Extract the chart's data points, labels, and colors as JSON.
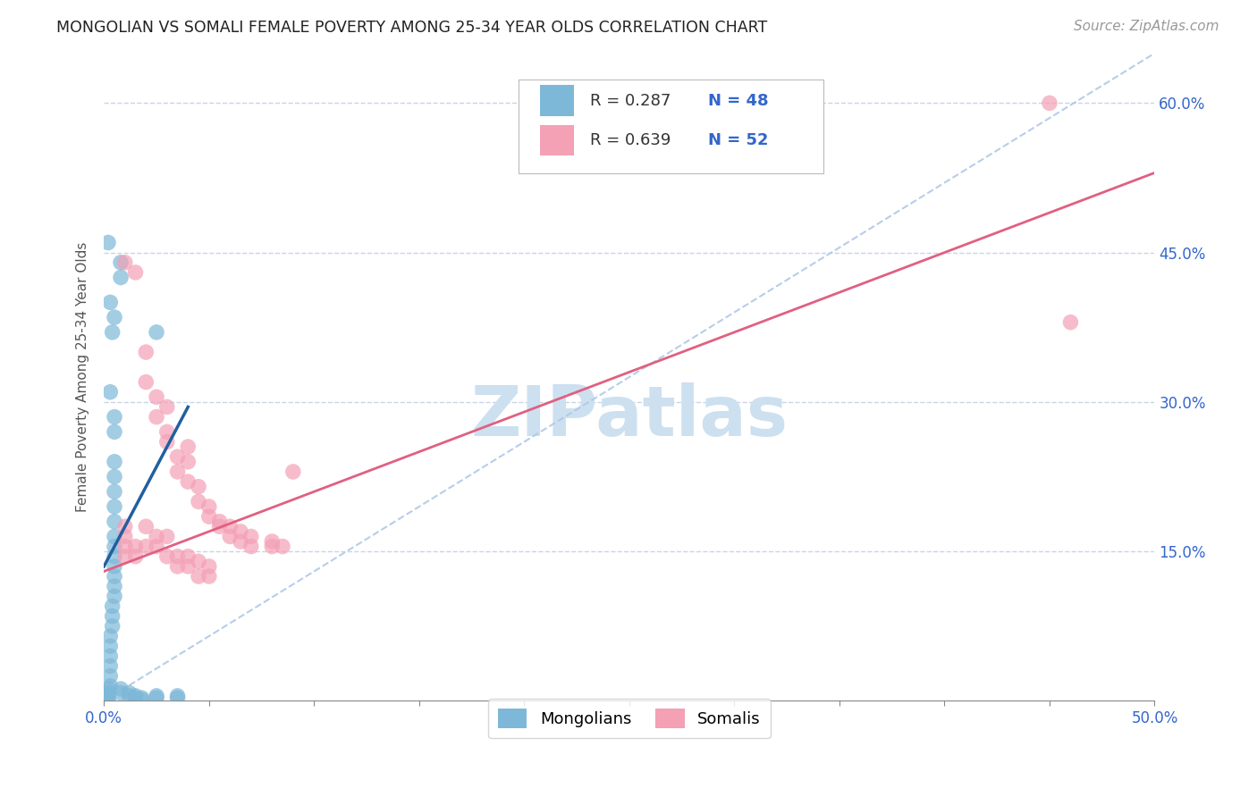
{
  "title": "MONGOLIAN VS SOMALI FEMALE POVERTY AMONG 25-34 YEAR OLDS CORRELATION CHART",
  "source": "Source: ZipAtlas.com",
  "ylabel": "Female Poverty Among 25-34 Year Olds",
  "xlim": [
    0.0,
    0.5
  ],
  "ylim": [
    0.0,
    0.65
  ],
  "xtick_positions": [
    0.0,
    0.05,
    0.1,
    0.15,
    0.2,
    0.25,
    0.3,
    0.35,
    0.4,
    0.45,
    0.5
  ],
  "xtick_labels_show": {
    "0.0": "0.0%",
    "0.50": "50.0%"
  },
  "ytick_positions": [
    0.15,
    0.3,
    0.45,
    0.6
  ],
  "ytick_labels": [
    "15.0%",
    "30.0%",
    "45.0%",
    "60.0%"
  ],
  "mongolian_color": "#7db8d8",
  "somali_color": "#f4a0b5",
  "mongolian_line_color": "#2060a0",
  "somali_line_color": "#e06080",
  "diagonal_color": "#b0c8e8",
  "mongolian_R": 0.287,
  "mongolian_N": 48,
  "somali_R": 0.639,
  "somali_N": 52,
  "watermark_color": "#cde0f0",
  "mongolian_scatter": [
    [
      0.002,
      0.46
    ],
    [
      0.008,
      0.44
    ],
    [
      0.008,
      0.425
    ],
    [
      0.003,
      0.4
    ],
    [
      0.005,
      0.385
    ],
    [
      0.004,
      0.37
    ],
    [
      0.025,
      0.37
    ],
    [
      0.003,
      0.31
    ],
    [
      0.005,
      0.285
    ],
    [
      0.005,
      0.27
    ],
    [
      0.005,
      0.24
    ],
    [
      0.005,
      0.225
    ],
    [
      0.005,
      0.21
    ],
    [
      0.005,
      0.195
    ],
    [
      0.005,
      0.18
    ],
    [
      0.005,
      0.165
    ],
    [
      0.005,
      0.155
    ],
    [
      0.005,
      0.145
    ],
    [
      0.005,
      0.135
    ],
    [
      0.005,
      0.125
    ],
    [
      0.005,
      0.115
    ],
    [
      0.005,
      0.105
    ],
    [
      0.004,
      0.095
    ],
    [
      0.004,
      0.085
    ],
    [
      0.004,
      0.075
    ],
    [
      0.003,
      0.065
    ],
    [
      0.003,
      0.055
    ],
    [
      0.003,
      0.045
    ],
    [
      0.003,
      0.035
    ],
    [
      0.003,
      0.025
    ],
    [
      0.003,
      0.015
    ],
    [
      0.002,
      0.012
    ],
    [
      0.002,
      0.008
    ],
    [
      0.002,
      0.005
    ],
    [
      0.002,
      0.003
    ],
    [
      0.002,
      0.001
    ],
    [
      0.008,
      0.012
    ],
    [
      0.008,
      0.008
    ],
    [
      0.012,
      0.008
    ],
    [
      0.012,
      0.005
    ],
    [
      0.015,
      0.005
    ],
    [
      0.015,
      0.003
    ],
    [
      0.018,
      0.003
    ],
    [
      0.018,
      0.001
    ],
    [
      0.025,
      0.005
    ],
    [
      0.025,
      0.003
    ],
    [
      0.035,
      0.005
    ],
    [
      0.035,
      0.003
    ]
  ],
  "somali_scatter": [
    [
      0.01,
      0.44
    ],
    [
      0.015,
      0.43
    ],
    [
      0.02,
      0.35
    ],
    [
      0.02,
      0.32
    ],
    [
      0.025,
      0.305
    ],
    [
      0.025,
      0.285
    ],
    [
      0.03,
      0.295
    ],
    [
      0.03,
      0.27
    ],
    [
      0.03,
      0.26
    ],
    [
      0.035,
      0.245
    ],
    [
      0.035,
      0.23
    ],
    [
      0.04,
      0.255
    ],
    [
      0.04,
      0.24
    ],
    [
      0.04,
      0.22
    ],
    [
      0.045,
      0.215
    ],
    [
      0.045,
      0.2
    ],
    [
      0.05,
      0.195
    ],
    [
      0.05,
      0.185
    ],
    [
      0.055,
      0.18
    ],
    [
      0.055,
      0.175
    ],
    [
      0.06,
      0.175
    ],
    [
      0.06,
      0.165
    ],
    [
      0.065,
      0.17
    ],
    [
      0.065,
      0.16
    ],
    [
      0.07,
      0.165
    ],
    [
      0.07,
      0.155
    ],
    [
      0.08,
      0.16
    ],
    [
      0.08,
      0.155
    ],
    [
      0.085,
      0.155
    ],
    [
      0.09,
      0.23
    ],
    [
      0.01,
      0.175
    ],
    [
      0.01,
      0.165
    ],
    [
      0.01,
      0.155
    ],
    [
      0.01,
      0.145
    ],
    [
      0.015,
      0.155
    ],
    [
      0.015,
      0.145
    ],
    [
      0.02,
      0.175
    ],
    [
      0.02,
      0.155
    ],
    [
      0.025,
      0.165
    ],
    [
      0.025,
      0.155
    ],
    [
      0.03,
      0.165
    ],
    [
      0.03,
      0.145
    ],
    [
      0.035,
      0.145
    ],
    [
      0.035,
      0.135
    ],
    [
      0.04,
      0.145
    ],
    [
      0.04,
      0.135
    ],
    [
      0.045,
      0.14
    ],
    [
      0.045,
      0.125
    ],
    [
      0.05,
      0.135
    ],
    [
      0.05,
      0.125
    ],
    [
      0.45,
      0.6
    ],
    [
      0.46,
      0.38
    ]
  ]
}
